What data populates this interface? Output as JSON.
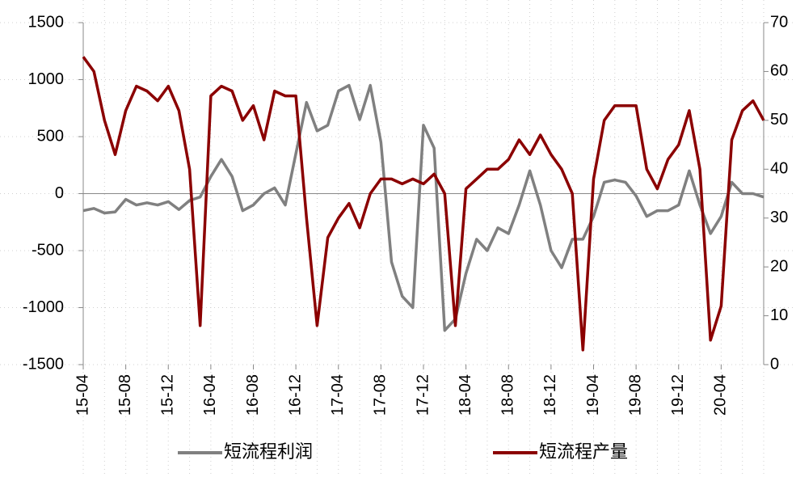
{
  "chart_data": {
    "type": "line",
    "categories": [
      "15-04",
      null,
      null,
      null,
      "15-08",
      null,
      null,
      null,
      "15-12",
      null,
      null,
      null,
      "16-04",
      null,
      null,
      null,
      "16-08",
      null,
      null,
      null,
      "16-12",
      null,
      null,
      null,
      "17-04",
      null,
      null,
      null,
      "17-08",
      null,
      null,
      null,
      "17-12",
      null,
      null,
      null,
      "18-04",
      null,
      null,
      null,
      "18-08",
      null,
      null,
      null,
      "18-12",
      null,
      null,
      null,
      "19-04",
      null,
      null,
      null,
      "19-08",
      null,
      null,
      null,
      "19-12",
      null,
      null,
      null,
      "20-04",
      null,
      null,
      null,
      null
    ],
    "series": [
      {
        "name": "短流程利润",
        "color": "#808080",
        "axis": "y",
        "values": [
          -150,
          -130,
          -170,
          -160,
          -50,
          -100,
          -80,
          -100,
          -70,
          -140,
          -60,
          -30,
          150,
          300,
          150,
          -150,
          -100,
          0,
          50,
          -100,
          350,
          800,
          550,
          600,
          900,
          950,
          650,
          950,
          450,
          -600,
          -900,
          -1000,
          600,
          400,
          -1200,
          -1100,
          -700,
          -400,
          -500,
          -300,
          -350,
          -100,
          200,
          -100,
          -500,
          -650,
          -400,
          -400,
          -200,
          100,
          120,
          100,
          -20,
          -200,
          -150,
          -150,
          -100,
          200,
          -100,
          -350,
          -200,
          100,
          0,
          0,
          -30
        ]
      },
      {
        "name": "短流程产量",
        "color": "#8b0000",
        "axis": "y2",
        "values": [
          63,
          60,
          50,
          43,
          52,
          57,
          56,
          54,
          57,
          52,
          40,
          8,
          55,
          57,
          56,
          50,
          53,
          46,
          56,
          55,
          55,
          30,
          8,
          26,
          30,
          33,
          28,
          35,
          38,
          38,
          37,
          38,
          37,
          39,
          35,
          8,
          36,
          38,
          40,
          40,
          42,
          46,
          43,
          47,
          43,
          40,
          35,
          3,
          38,
          50,
          53,
          53,
          53,
          40,
          36,
          42,
          45,
          52,
          40,
          5,
          12,
          46,
          52,
          54,
          50
        ]
      }
    ],
    "ylim": [
      -1500,
      1500
    ],
    "yticks": [
      -1500,
      -1000,
      -500,
      0,
      500,
      1000,
      1500
    ],
    "y2lim": [
      0,
      70
    ],
    "y2ticks": [
      0,
      10,
      20,
      30,
      40,
      50,
      60,
      70
    ],
    "grid": true,
    "legend": "bottom"
  }
}
